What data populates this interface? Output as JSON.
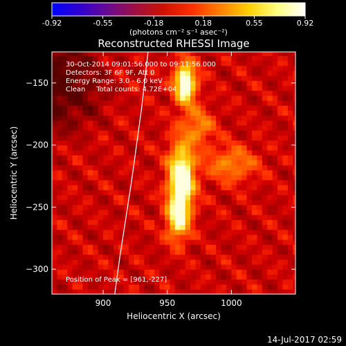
{
  "colorbar": {
    "ticks": [
      "-0.92",
      "-0.55",
      "-0.18",
      "0.18",
      "0.55",
      "0.92"
    ],
    "tick_values": [
      -0.92,
      -0.55,
      -0.18,
      0.18,
      0.55,
      0.92
    ],
    "range": [
      -0.92,
      0.92
    ],
    "unit_label": "(photons cm⁻² s⁻¹ asec⁻²)",
    "colormap": [
      "#0000ff",
      "#3000d0",
      "#6a0a90",
      "#a01040",
      "#d01000",
      "#ff3000",
      "#ff8000",
      "#ffd000",
      "#ffff80",
      "#ffffff"
    ]
  },
  "chart_data": {
    "type": "heatmap",
    "title": "Reconstructed RHESSI Image",
    "xlabel": "Heliocentric X (arcsec)",
    "ylabel": "Heliocentric Y (arcsec)",
    "xlim": [
      860,
      1050
    ],
    "ylim": [
      -320,
      -125
    ],
    "x_ticks": [
      900,
      950,
      1000
    ],
    "x_tick_labels": [
      "900",
      "950",
      "1000"
    ],
    "y_ticks": [
      -150,
      -200,
      -250,
      -300
    ],
    "y_tick_labels": [
      "−150",
      "−200",
      "−250",
      "−300"
    ],
    "annotations": [
      "30-Oct-2014 09:01:56.000 to 09:11:56.000",
      "Detectors: 3F 6F 9F, Att 0",
      "Energy Range: 3.0 - 6.0 keV",
      "Clean     Total counts: 4.72E+04"
    ],
    "peak_label": "Position of Peak = [961,-227]",
    "peak": [
      961,
      -227
    ],
    "limb": [
      [
        935,
        -125
      ],
      [
        930,
        -170
      ],
      [
        922,
        -230
      ],
      [
        913,
        -290
      ],
      [
        909,
        -320
      ]
    ],
    "sources": [
      {
        "x": 961,
        "y": -227,
        "sigx": 7,
        "sigy": 20,
        "amp": 0.92
      },
      {
        "x": 964,
        "y": -150,
        "sigx": 6,
        "sigy": 12,
        "amp": 0.85
      },
      {
        "x": 958,
        "y": -260,
        "sigx": 6,
        "sigy": 12,
        "amp": 0.55
      },
      {
        "x": 1000,
        "y": -215,
        "sigx": 14,
        "sigy": 10,
        "amp": 0.35
      },
      {
        "x": 975,
        "y": -185,
        "sigx": 8,
        "sigy": 10,
        "amp": 0.35
      }
    ]
  },
  "timestamp": "14-Jul-2017 02:59"
}
